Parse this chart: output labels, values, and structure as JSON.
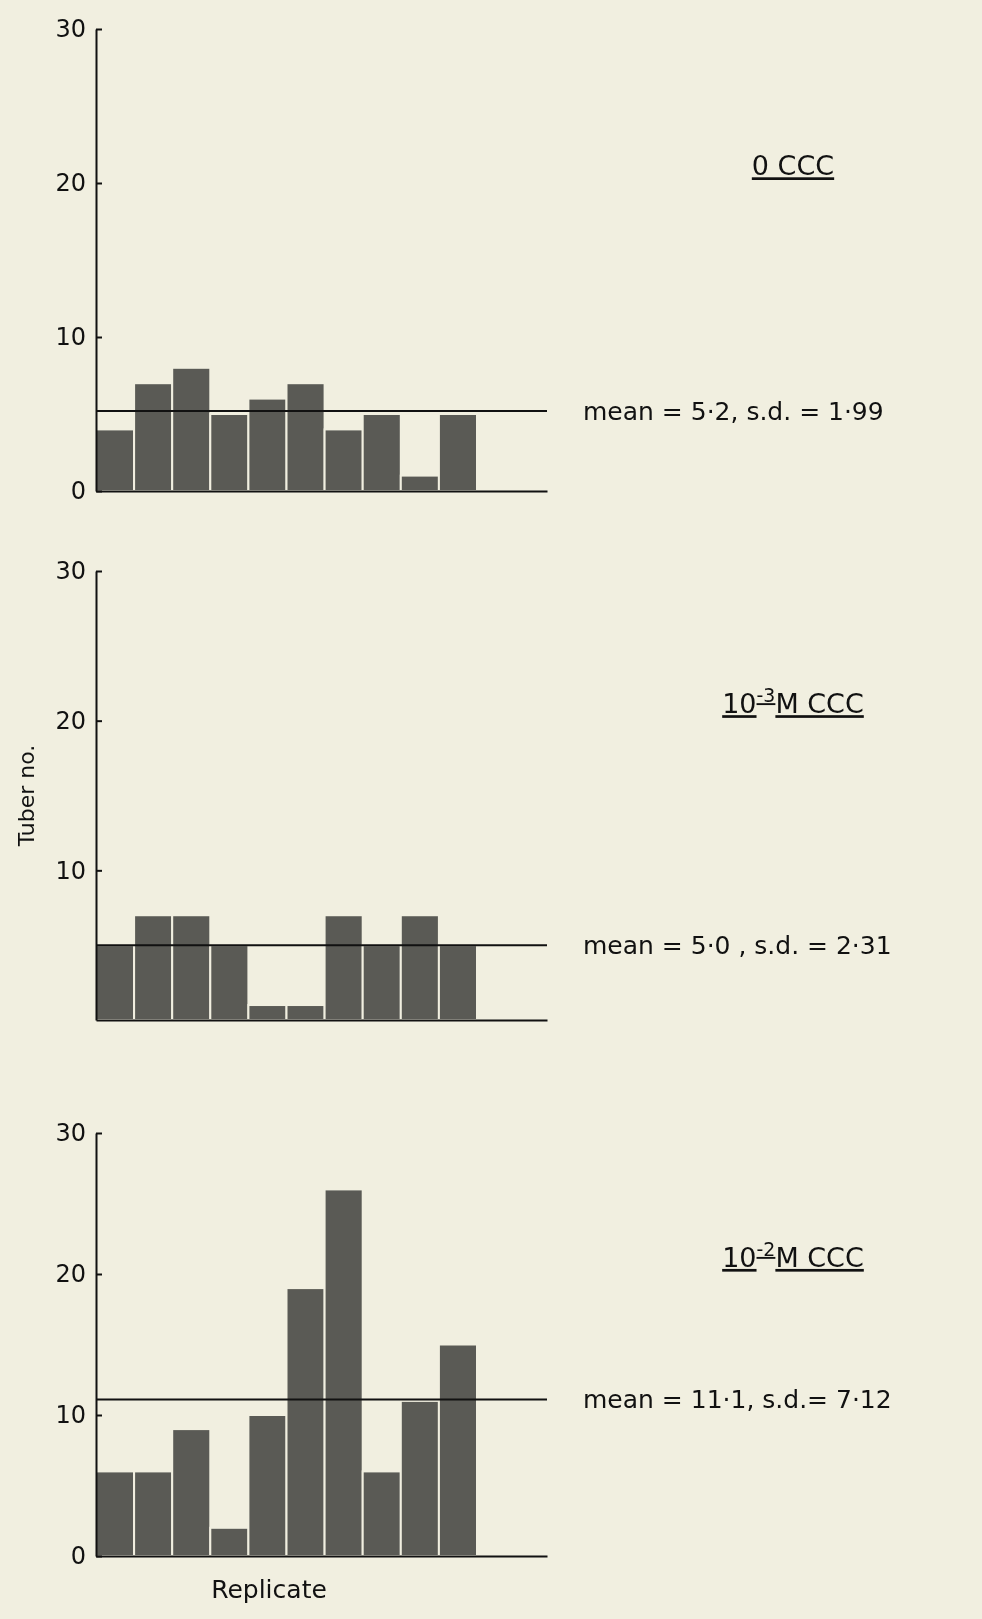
{
  "chart_data": [
    {
      "type": "bar",
      "annotations": [
        "0 CCC"
      ],
      "categories": [
        null,
        null,
        null,
        null,
        null,
        null,
        null,
        null,
        null,
        null
      ],
      "values": [
        4,
        7,
        8,
        5,
        6,
        7,
        4,
        5,
        1,
        5
      ],
      "color": "#5a5a55",
      "ylim": [
        0,
        30
      ],
      "yticks": [
        0,
        10,
        20,
        30
      ],
      "grid": false,
      "ref_lines": [
        {
          "axis": "y",
          "value": 5.2,
          "label": "mean = 5·2,  s.d. = 1·99"
        }
      ]
    },
    {
      "type": "bar",
      "annotations": [
        "10$^{-3}$M CCC"
      ],
      "ylabel": "Tuber no.",
      "categories": [
        null,
        null,
        null,
        null,
        null,
        null,
        null,
        null,
        null,
        null
      ],
      "values": [
        5,
        7,
        7,
        5,
        1,
        1,
        7,
        5,
        7,
        5
      ],
      "color": "#5a5a55",
      "ylim": [
        0,
        30
      ],
      "yticks": [
        10,
        20,
        30
      ],
      "grid": false,
      "ref_lines": [
        {
          "axis": "y",
          "value": 5.0,
          "label": "mean = 5·0 ,  s.d. = 2·31"
        }
      ]
    },
    {
      "type": "bar",
      "annotations": [
        "10$^{-2}$M CCC"
      ],
      "xlabel": "Replicate",
      "categories": [
        null,
        null,
        null,
        null,
        null,
        null,
        null,
        null,
        null,
        null
      ],
      "values": [
        6,
        6,
        9,
        2,
        10,
        19,
        26,
        6,
        11,
        15
      ],
      "color": "#5a5a55",
      "ylim": [
        0,
        30
      ],
      "yticks": [
        0,
        10,
        20,
        30
      ],
      "grid": false,
      "ref_lines": [
        {
          "axis": "y",
          "value": 11.1,
          "label": "mean = 11·1,  s.d.= 7·12"
        }
      ]
    }
  ]
}
